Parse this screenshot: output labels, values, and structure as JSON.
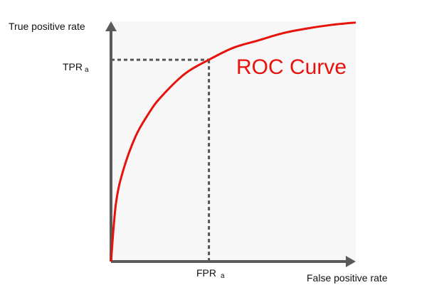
{
  "chart_data": {
    "type": "line",
    "xlabel": "False positive rate",
    "ylabel": "True positive rate",
    "xlim": [
      0,
      1
    ],
    "ylim": [
      0,
      1
    ],
    "grid": false,
    "tick_labels": {
      "x": [],
      "y": []
    },
    "series": [
      {
        "name": "ROC Curve",
        "color": "#e8120c",
        "x": [
          0,
          0.02,
          0.05,
          0.1,
          0.15,
          0.2,
          0.3,
          0.4,
          0.5,
          0.6,
          0.7,
          0.8,
          0.9,
          1.0
        ],
        "y": [
          0,
          0.24,
          0.38,
          0.52,
          0.61,
          0.68,
          0.78,
          0.84,
          0.89,
          0.92,
          0.95,
          0.97,
          0.985,
          0.995
        ]
      }
    ],
    "marker": {
      "x": 0.4,
      "y": 0.84,
      "x_label": "FPR",
      "x_label_sub": "a",
      "y_label": "TPR",
      "y_label_sub": "a"
    },
    "annotation": {
      "text": "ROC Curve",
      "color": "#e8120c"
    },
    "colors": {
      "axis": "#5a5a5a",
      "guide": "#555555",
      "plot_background": "#f7f7f7"
    }
  }
}
